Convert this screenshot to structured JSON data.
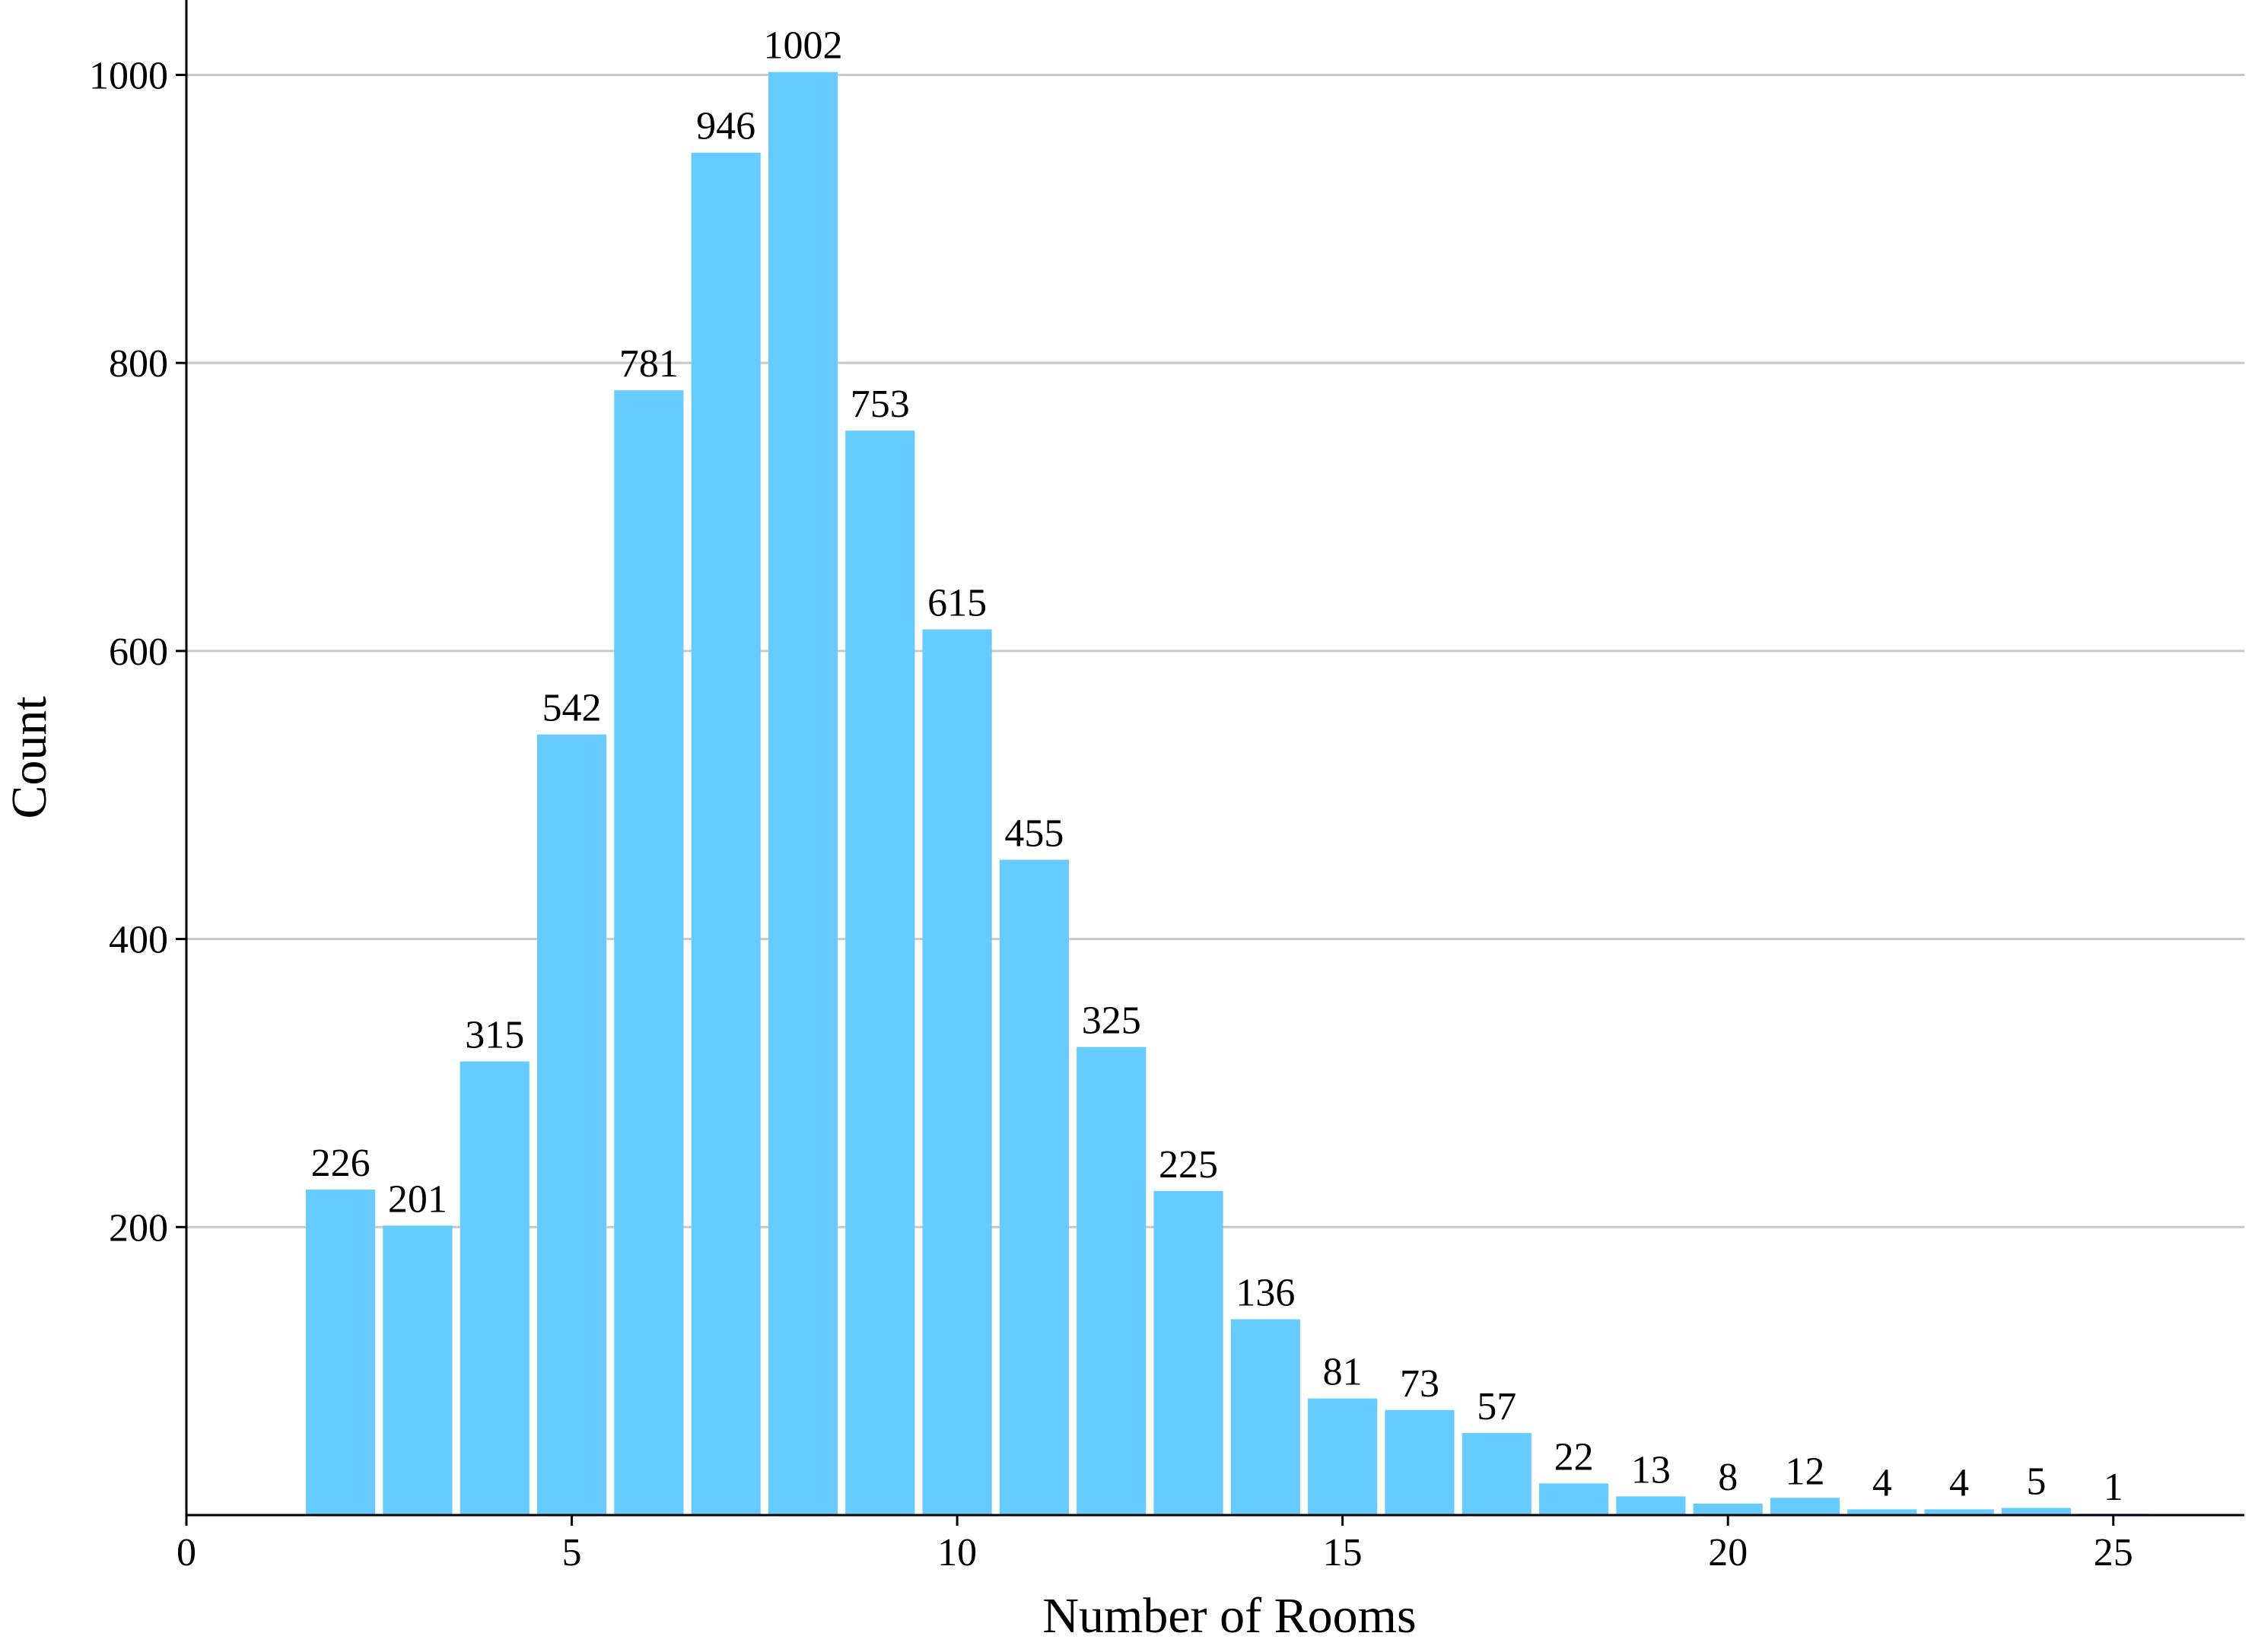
{
  "chart_data": {
    "type": "bar",
    "title": "",
    "xlabel": "Number of Rooms",
    "ylabel": "Count",
    "x": [
      2,
      3,
      4,
      5,
      6,
      7,
      8,
      9,
      10,
      11,
      12,
      13,
      14,
      15,
      16,
      17,
      18,
      19,
      20,
      21,
      22,
      23,
      24,
      25
    ],
    "values": [
      226,
      201,
      315,
      542,
      781,
      946,
      1002,
      753,
      615,
      455,
      325,
      225,
      136,
      81,
      73,
      57,
      22,
      13,
      8,
      12,
      4,
      4,
      5,
      1
    ],
    "data_labels": [
      "226",
      "201",
      "315",
      "542",
      "781",
      "946",
      "1002",
      "753",
      "615",
      "455",
      "325",
      "225",
      "136",
      "81",
      "73",
      "57",
      "22",
      "13",
      "8",
      "12",
      "4",
      "4",
      "5",
      "1"
    ],
    "xlim": [
      0,
      26.7
    ],
    "ylim": [
      0,
      1052
    ],
    "xticks": [
      0,
      5,
      10,
      15,
      20,
      25
    ],
    "xtick_labels": [
      "0",
      "5",
      "10",
      "15",
      "20",
      "25"
    ],
    "yticks": [
      200,
      400,
      600,
      800,
      1000
    ],
    "ytick_labels": [
      "200",
      "400",
      "600",
      "800",
      "1000"
    ],
    "grid": "horizontal",
    "legend": "none",
    "colors": {
      "bar": "#66CCFF",
      "grid": "#C8C8C8",
      "axis": "#000000",
      "text": "#000000"
    }
  }
}
